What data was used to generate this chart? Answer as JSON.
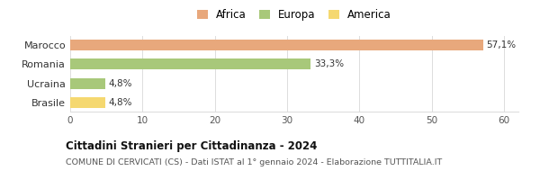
{
  "categories": [
    "Brasile",
    "Ucraina",
    "Romania",
    "Marocco"
  ],
  "values": [
    4.8,
    4.8,
    33.3,
    57.1
  ],
  "colors": [
    "#f5d870",
    "#a8c87a",
    "#a8c87a",
    "#e8a87c"
  ],
  "bar_labels": [
    "4,8%",
    "4,8%",
    "33,3%",
    "57,1%"
  ],
  "xlim": [
    0,
    62
  ],
  "xticks": [
    0,
    10,
    20,
    30,
    40,
    50,
    60
  ],
  "title": "Cittadini Stranieri per Cittadinanza - 2024",
  "subtitle": "COMUNE DI CERVICATI (CS) - Dati ISTAT al 1° gennaio 2024 - Elaborazione TUTTITALIA.IT",
  "legend": [
    {
      "label": "Africa",
      "color": "#e8a87c"
    },
    {
      "label": "Europa",
      "color": "#a8c87a"
    },
    {
      "label": "America",
      "color": "#f5d870"
    }
  ],
  "bg_color": "#ffffff",
  "grid_color": "#dddddd",
  "bar_height": 0.55
}
